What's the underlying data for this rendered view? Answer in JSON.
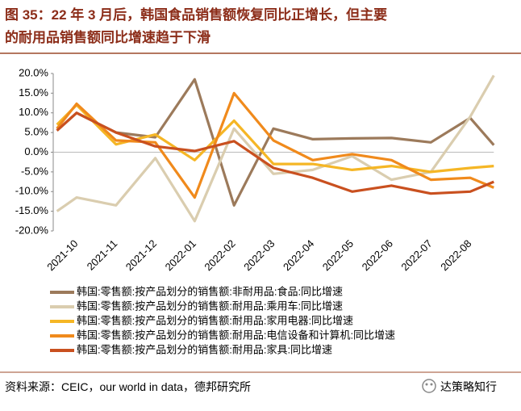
{
  "chart_data": {
    "type": "line",
    "title": [
      "图 35：22 年 3 月后，韩国食品销售额恢复同比正增长，但主要",
      "的耐用品销售额同比增速趋于下滑"
    ],
    "categories": [
      null,
      "2021-10",
      "2021-11",
      "2021-12",
      "2022-01",
      "2022-02",
      "2022-03",
      "2022-04",
      "2022-05",
      "2022-06",
      "2022-07",
      "2022-08",
      null
    ],
    "series": [
      {
        "name": "韩国:零售额:按产品划分的销售额:非耐用品:食品:同比增速",
        "color": "#9c7a5b",
        "values": [
          5.5,
          10,
          5,
          3.8,
          18.5,
          -13.5,
          6,
          3.3,
          3.5,
          3.6,
          2.5,
          8.7,
          1.8
        ]
      },
      {
        "name": "韩国:零售额:按产品划分的销售额:耐用品:乘用车:同比增速",
        "color": "#dacdaf",
        "values": [
          -15,
          -11.5,
          -13.5,
          -1.5,
          -17.5,
          6,
          -5.5,
          -4.5,
          -1,
          -7,
          -5,
          9,
          19.5
        ]
      },
      {
        "name": "韩国:零售额:按产品划分的销售额:耐用品:家用电器:同比增速",
        "color": "#f5b625",
        "values": [
          7,
          12,
          2,
          4.5,
          -2,
          8,
          -3,
          -3,
          -4.5,
          -3.5,
          -5,
          -4,
          -3.5
        ]
      },
      {
        "name": "韩国:零售额:按产品划分的销售额:耐用品:电信设备和计算机:同比增速",
        "color": "#f08a1c",
        "values": [
          6,
          12.3,
          3,
          2.5,
          -11.5,
          15,
          3,
          -2,
          -0.5,
          -2,
          -7,
          -6.5,
          -9
        ]
      },
      {
        "name": "韩国:零售额:按产品划分的销售额:耐用品:家具:同比增速",
        "color": "#c9501f",
        "values": [
          5.5,
          10,
          5,
          1.5,
          0.3,
          2.8,
          -4,
          -6.5,
          -10,
          -8.5,
          -10.5,
          -10,
          -7.5
        ]
      }
    ],
    "ylim": [
      -20,
      20
    ],
    "yticks": [
      {
        "value": 20,
        "label": "20.0%"
      },
      {
        "value": 15,
        "label": "15.0%"
      },
      {
        "value": 10,
        "label": "10.0%"
      },
      {
        "value": 5,
        "label": "5.0%"
      },
      {
        "value": 0,
        "label": "0.0%"
      },
      {
        "value": -5,
        "label": "-5.0%"
      },
      {
        "value": -10,
        "label": "-10.0%"
      },
      {
        "value": -15,
        "label": "-15.0%"
      },
      {
        "value": -20,
        "label": "-20.0%"
      }
    ],
    "source": "资料来源：CEIC，our world in data，德邦研究所",
    "watermark": "达策略知行"
  }
}
